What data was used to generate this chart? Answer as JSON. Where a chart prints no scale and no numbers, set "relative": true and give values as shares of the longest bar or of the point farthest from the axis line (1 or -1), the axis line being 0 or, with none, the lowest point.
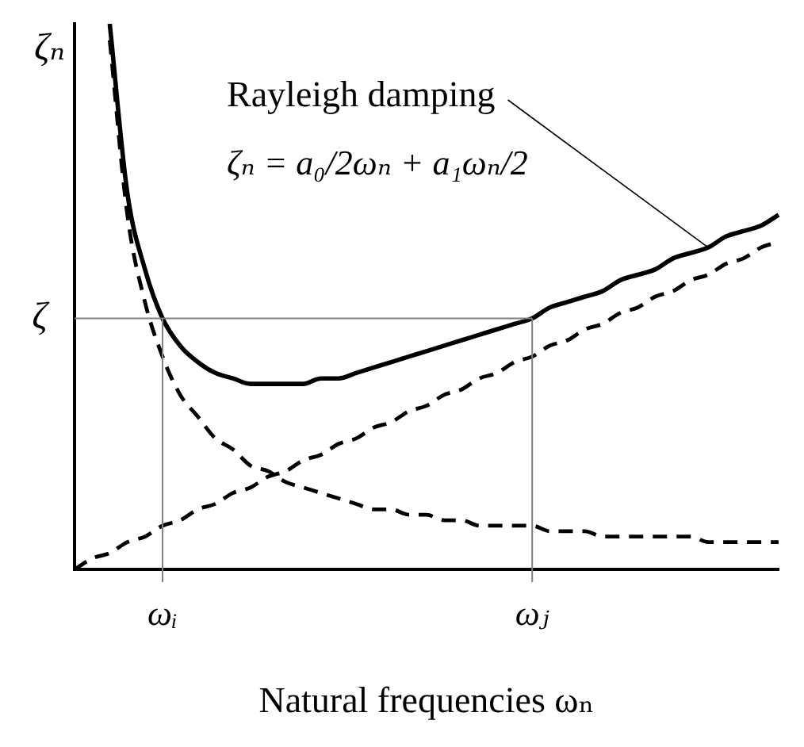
{
  "chart_data": {
    "type": "line",
    "relative": true,
    "xlabel": "Natural frequencies ωₙ",
    "ylabel": "ζₙ",
    "categories": [
      null,
      null,
      null,
      null,
      null,
      "ωᵢ",
      null,
      null,
      null,
      null,
      null,
      null,
      null,
      null,
      null,
      null,
      null,
      null,
      null,
      null,
      null,
      null,
      null,
      null,
      null,
      null,
      "ωⱼ",
      null,
      null,
      null,
      null,
      null,
      null,
      null,
      null,
      null,
      null,
      null,
      null,
      null,
      null
    ],
    "series": [
      {
        "name": "Rayleigh damping",
        "color": "#000000",
        "line_style": "solid",
        "values": [
          null,
          null,
          1.0,
          0.69,
          0.55,
          0.46,
          0.41,
          0.38,
          0.36,
          0.35,
          0.34,
          0.34,
          0.34,
          0.34,
          0.35,
          0.35,
          0.36,
          0.37,
          0.38,
          0.39,
          0.4,
          0.41,
          0.42,
          0.43,
          0.44,
          0.45,
          0.46,
          0.48,
          0.49,
          0.5,
          0.51,
          0.53,
          0.54,
          0.55,
          0.57,
          0.58,
          0.59,
          0.61,
          0.62,
          0.63,
          0.65
        ]
      },
      {
        "color": "#000000",
        "line_style": "dashed",
        "values": [
          null,
          null,
          0.97,
          0.65,
          0.49,
          0.39,
          0.32,
          0.28,
          0.24,
          0.22,
          0.19,
          0.18,
          0.16,
          0.15,
          0.14,
          0.13,
          0.12,
          0.11,
          0.11,
          0.1,
          0.1,
          0.09,
          0.09,
          0.08,
          0.08,
          0.08,
          0.08,
          0.07,
          0.07,
          0.07,
          0.06,
          0.06,
          0.06,
          0.06,
          0.06,
          0.06,
          0.05,
          0.05,
          0.05,
          0.05,
          0.05
        ]
      },
      {
        "color": "#000000",
        "line_style": "dashed",
        "values": [
          0,
          0.02,
          0.03,
          0.05,
          0.06,
          0.08,
          0.09,
          0.11,
          0.12,
          0.14,
          0.15,
          0.17,
          0.18,
          0.2,
          0.21,
          0.23,
          0.24,
          0.26,
          0.27,
          0.29,
          0.3,
          0.32,
          0.33,
          0.35,
          0.36,
          0.38,
          0.39,
          0.41,
          0.42,
          0.44,
          0.45,
          0.47,
          0.48,
          0.5,
          0.51,
          0.53,
          0.54,
          0.56,
          0.57,
          0.59,
          0.6
        ]
      }
    ],
    "ref_lines": [
      {
        "axis": "y",
        "value": 0.46,
        "label": "ζ",
        "color": "#808080"
      },
      {
        "axis": "x",
        "value": "ωᵢ",
        "color": "#808080"
      },
      {
        "axis": "x",
        "value": "ωⱼ",
        "color": "#808080"
      }
    ],
    "annotations": [
      "ζₙ = a₀/2ωₙ + a₁ωₙ/2"
    ],
    "grid": false,
    "legend": false,
    "marker": "none"
  }
}
